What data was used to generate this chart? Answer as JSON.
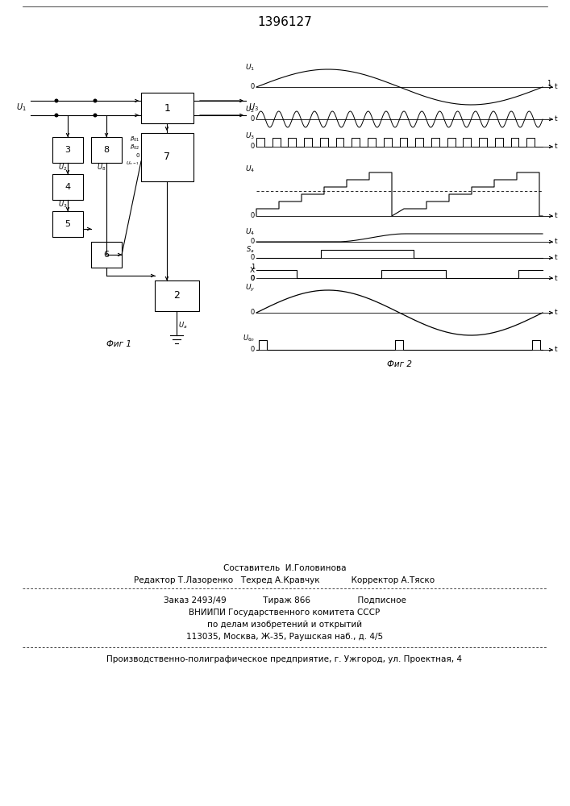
{
  "title": "1396127",
  "bg_color": "#ffffff",
  "line_color": "#000000",
  "fig1_label": "Фиг 1",
  "fig2_label": "Фиг 2",
  "footer_lines": [
    "Составитель  И.Головинова",
    "Редактор Т.Лазоренко   Техред А.Кравчук            Корректор А.Тяско",
    "Заказ 2493/49              Тираж 866                  Подписное",
    "ВНИИПИ Государственного комитета СССР",
    "по делам изобретений и открытий",
    "113035, Москва, Ж-35, Раушская наб., д. 4/5",
    "Производственно-полиграфическое предприятие, г. Ужгород, ул. Проектная, 4"
  ]
}
